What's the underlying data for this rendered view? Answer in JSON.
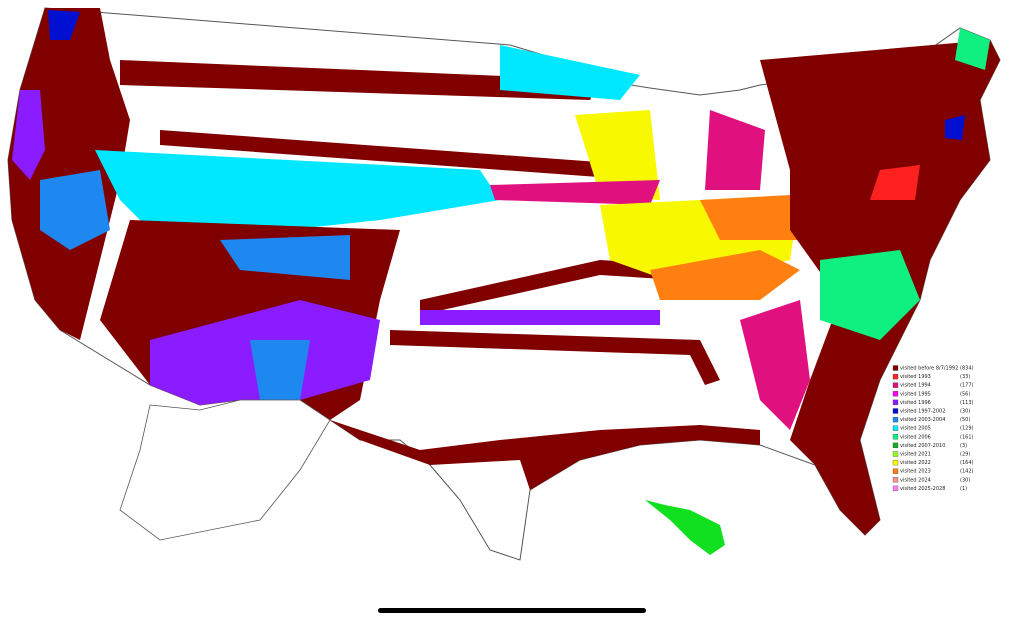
{
  "legend": {
    "items": [
      {
        "label": "visited before 8/7/1992",
        "count": "(834)",
        "color": "#800000"
      },
      {
        "label": "visited 1993",
        "count": "(33)",
        "color": "#ff2020"
      },
      {
        "label": "visited 1994",
        "count": "(177)",
        "color": "#e0107f"
      },
      {
        "label": "visited 1995",
        "count": "(56)",
        "color": "#ff00ff"
      },
      {
        "label": "visited 1996",
        "count": "(113)",
        "color": "#8a1cff"
      },
      {
        "label": "visited 1997-2002",
        "count": "(30)",
        "color": "#0010d0"
      },
      {
        "label": "visited 2003-2004",
        "count": "(50)",
        "color": "#1e88f0"
      },
      {
        "label": "visited 2005",
        "count": "(129)",
        "color": "#00e8ff"
      },
      {
        "label": "visited 2006",
        "count": "(161)",
        "color": "#10f080"
      },
      {
        "label": "visited 2007-2010",
        "count": "(3)",
        "color": "#10b020"
      },
      {
        "label": "visited 2021",
        "count": "(29)",
        "color": "#90ff20"
      },
      {
        "label": "visited 2022",
        "count": "(164)",
        "color": "#f8f800"
      },
      {
        "label": "visited 2023",
        "count": "(142)",
        "color": "#ff8010"
      },
      {
        "label": "visited 2024",
        "count": "(30)",
        "color": "#ff9090"
      },
      {
        "label": "visited 2025-2028",
        "count": "(1)",
        "color": "#ff80ff"
      }
    ]
  }
}
